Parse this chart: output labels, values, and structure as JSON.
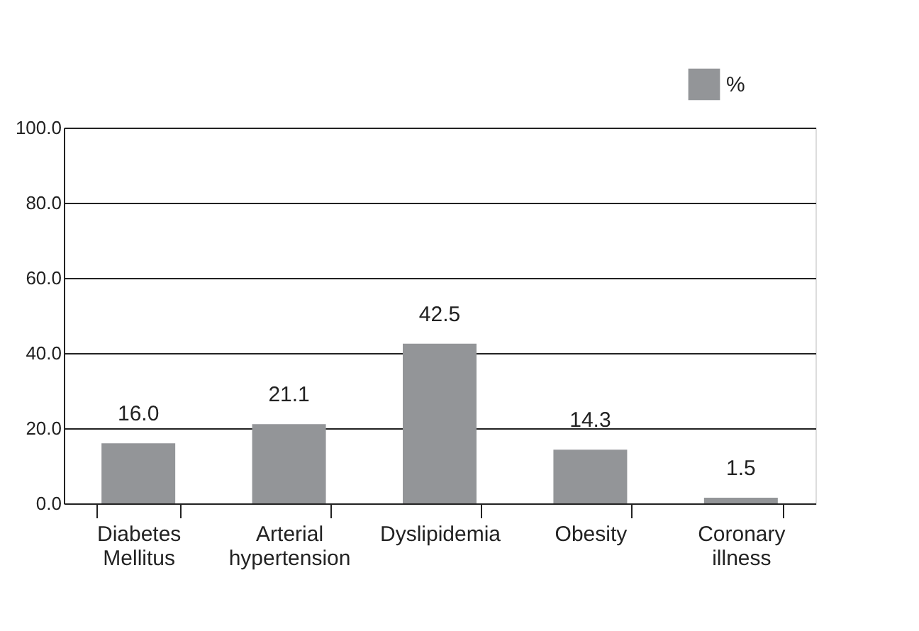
{
  "chart_data": {
    "type": "bar",
    "categories": [
      "Diabetes\nMellitus",
      "Arterial\nhypertension",
      "Dyslipidemia",
      "Obesity",
      "Coronary\nillness"
    ],
    "series": [
      {
        "name": "%",
        "color": "#939598",
        "values": [
          16.0,
          21.1,
          42.5,
          14.3,
          1.5
        ],
        "value_labels": [
          "16.0",
          "21.1",
          "42.5",
          "14.3",
          "1.5"
        ]
      }
    ],
    "ylim": [
      0,
      100
    ],
    "yticks": [
      {
        "value": 0,
        "label": "0.0"
      },
      {
        "value": 20,
        "label": "20.0"
      },
      {
        "value": 40,
        "label": "40.0"
      },
      {
        "value": 60,
        "label": "60.0"
      },
      {
        "value": 80,
        "label": "80.0"
      },
      {
        "value": 100,
        "label": "100.0"
      }
    ],
    "grid": "y",
    "legend": "top right"
  }
}
